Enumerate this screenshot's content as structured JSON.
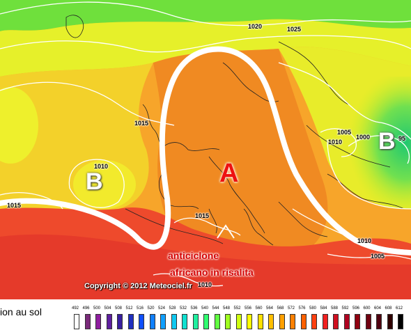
{
  "map": {
    "pressure_labels": {
      "b_west": "B",
      "b_east": "B",
      "b_east_tail": "95",
      "a_center": "A"
    },
    "isobars": {
      "top_1020": "1020",
      "top_1025": "1025",
      "west_1015": "1015",
      "low_1010": "1010",
      "left_edge": "1015",
      "med_1015": "1015",
      "east_1005": "1005",
      "east_1000": "1000",
      "east_1010": "1010",
      "se_1010": "1010",
      "se_1005": "1005",
      "south_1010": "1010"
    },
    "annotation": {
      "line1": "anticiclone",
      "line2": "africano in risalita"
    },
    "copyright": "Copyright © 2012 Meteociel.fr"
  },
  "legend": {
    "title_fragment": "ion au sol",
    "ticks": [
      "492",
      "496",
      "500",
      "504",
      "508",
      "512",
      "516",
      "520",
      "524",
      "528",
      "532",
      "536",
      "540",
      "544",
      "548",
      "552",
      "556",
      "560",
      "564",
      "568",
      "572",
      "576",
      "580",
      "584",
      "588",
      "592",
      "596",
      "600",
      "604",
      "608",
      "612"
    ],
    "colors": [
      "#ffffff",
      "#7a2a7a",
      "#8f1f9f",
      "#5f1fa0",
      "#3a1f9f",
      "#2030c0",
      "#1050ff",
      "#1080ff",
      "#10a0ff",
      "#10c8f0",
      "#10e0d0",
      "#20f0a0",
      "#30ff70",
      "#60ff40",
      "#a0ff20",
      "#d0ff10",
      "#ffff00",
      "#ffe000",
      "#ffc000",
      "#ffa000",
      "#ff8000",
      "#ff6000",
      "#ff4010",
      "#f02020",
      "#d01020",
      "#b00020",
      "#900010",
      "#700010",
      "#500010",
      "#300000",
      "#000000"
    ]
  },
  "colors": {
    "zone_green": "#40d84a",
    "zone_yellow": "#f0f020",
    "zone_orange": "#f5821f",
    "zone_red": "#f03c2e",
    "ridge_line": "#ffffff"
  }
}
